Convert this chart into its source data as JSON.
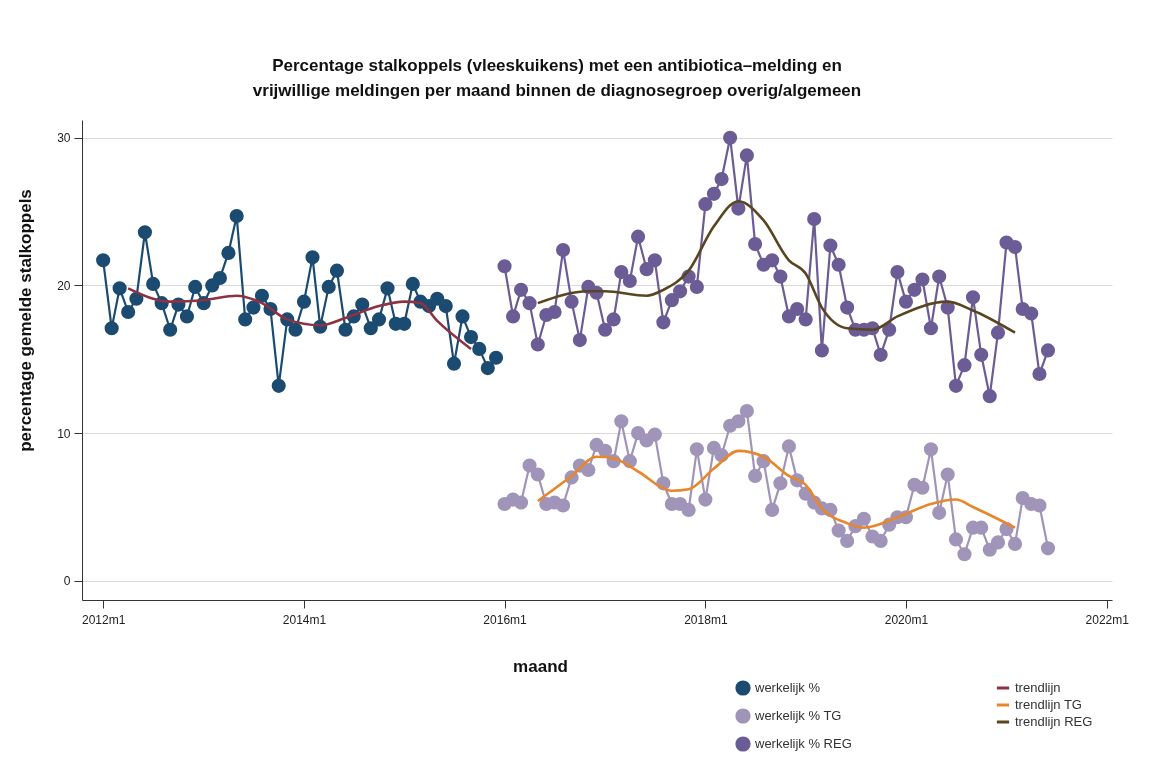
{
  "chart_data": {
    "type": "line",
    "title": "Percentage stalkoppels (vleeskuikens) met een antibiotica–melding en\nvrijwillige meldingen per maand binnen de diagnosegroep overig/algemeen",
    "xlabel": "maand",
    "ylabel": "percentage gemelde stalkoppels",
    "xlim": [
      "2011-10-16",
      "2022-01-20"
    ],
    "xticks": [
      {
        "value": "2012-01",
        "label": "2012m1"
      },
      {
        "value": "2014-01",
        "label": "2014m1"
      },
      {
        "value": "2016-01",
        "label": "2016m1"
      },
      {
        "value": "2018-01",
        "label": "2018m1"
      },
      {
        "value": "2020-01",
        "label": "2020m1"
      },
      {
        "value": "2022-01",
        "label": "2022m1"
      }
    ],
    "ylim": [
      -1.3,
      31.2
    ],
    "yticks": [
      0,
      10,
      20,
      30
    ],
    "grid": "y",
    "legend": "bottom right",
    "marker": "circle",
    "line_style": "solid",
    "series": [
      {
        "name": "werkelijk %",
        "color": "#1b4b70",
        "x": [
          "2012-01",
          "2012-02",
          "2012-03",
          "2012-04",
          "2012-05",
          "2012-06",
          "2012-07",
          "2012-08",
          "2012-09",
          "2012-10",
          "2012-11",
          "2012-12",
          "2013-01",
          "2013-02",
          "2013-03",
          "2013-04",
          "2013-05",
          "2013-06",
          "2013-07",
          "2013-08",
          "2013-09",
          "2013-10",
          "2013-11",
          "2013-12",
          "2014-01",
          "2014-02",
          "2014-03",
          "2014-04",
          "2014-05",
          "2014-06",
          "2014-07",
          "2014-08",
          "2014-09",
          "2014-10",
          "2014-11",
          "2014-12",
          "2015-01",
          "2015-02",
          "2015-03",
          "2015-04",
          "2015-05",
          "2015-06",
          "2015-07",
          "2015-08",
          "2015-09",
          "2015-10",
          "2015-11",
          "2015-12"
        ],
        "values": [
          21.7,
          17.1,
          19.8,
          18.2,
          19.1,
          23.6,
          20.1,
          18.8,
          17.0,
          18.7,
          17.9,
          19.9,
          18.8,
          20.0,
          20.5,
          22.2,
          24.7,
          17.7,
          18.5,
          19.3,
          18.4,
          13.2,
          17.7,
          17.0,
          18.9,
          21.9,
          17.2,
          19.9,
          21.0,
          17.0,
          17.9,
          18.7,
          17.1,
          17.7,
          19.8,
          17.4,
          17.4,
          20.1,
          18.9,
          18.6,
          19.1,
          18.6,
          14.7,
          17.9,
          16.5,
          15.7,
          14.4,
          15.1
        ]
      },
      {
        "name": "werkelijk % TG",
        "color": "#a094b9",
        "x": [
          "2016-01",
          "2016-02",
          "2016-03",
          "2016-04",
          "2016-05",
          "2016-06",
          "2016-07",
          "2016-08",
          "2016-09",
          "2016-10",
          "2016-11",
          "2016-12",
          "2017-01",
          "2017-02",
          "2017-03",
          "2017-04",
          "2017-05",
          "2017-06",
          "2017-07",
          "2017-08",
          "2017-09",
          "2017-10",
          "2017-11",
          "2017-12",
          "2018-01",
          "2018-02",
          "2018-03",
          "2018-04",
          "2018-05",
          "2018-06",
          "2018-07",
          "2018-08",
          "2018-09",
          "2018-10",
          "2018-11",
          "2018-12",
          "2019-01",
          "2019-02",
          "2019-03",
          "2019-04",
          "2019-05",
          "2019-06",
          "2019-07",
          "2019-08",
          "2019-09",
          "2019-10",
          "2019-11",
          "2019-12",
          "2020-01",
          "2020-02",
          "2020-03",
          "2020-04",
          "2020-05",
          "2020-06",
          "2020-07",
          "2020-08",
          "2020-09",
          "2020-10",
          "2020-11",
          "2020-12",
          "2021-01",
          "2021-02",
          "2021-03",
          "2021-04",
          "2021-05",
          "2021-06"
        ],
        "values": [
          5.2,
          5.5,
          5.3,
          7.8,
          7.2,
          5.2,
          5.3,
          5.1,
          7.0,
          7.8,
          7.5,
          9.2,
          8.8,
          8.1,
          10.8,
          8.1,
          10.0,
          9.5,
          9.9,
          6.6,
          5.2,
          5.2,
          4.8,
          8.9,
          5.5,
          9.0,
          8.5,
          10.5,
          10.8,
          11.5,
          7.1,
          8.1,
          4.8,
          6.6,
          9.1,
          6.8,
          5.9,
          5.3,
          4.9,
          4.8,
          3.4,
          2.7,
          3.7,
          4.2,
          3.0,
          2.7,
          3.8,
          4.3,
          4.3,
          6.5,
          6.3,
          8.9,
          4.6,
          7.2,
          2.8,
          1.8,
          3.6,
          3.6,
          2.1,
          2.6,
          3.5,
          2.5,
          5.6,
          5.2,
          5.1,
          2.2
        ]
      },
      {
        "name": "werkelijk % REG",
        "color": "#6c5c95",
        "x": [
          "2016-01",
          "2016-02",
          "2016-03",
          "2016-04",
          "2016-05",
          "2016-06",
          "2016-07",
          "2016-08",
          "2016-09",
          "2016-10",
          "2016-11",
          "2016-12",
          "2017-01",
          "2017-02",
          "2017-03",
          "2017-04",
          "2017-05",
          "2017-06",
          "2017-07",
          "2017-08",
          "2017-09",
          "2017-10",
          "2017-11",
          "2017-12",
          "2018-01",
          "2018-02",
          "2018-03",
          "2018-04",
          "2018-05",
          "2018-06",
          "2018-07",
          "2018-08",
          "2018-09",
          "2018-10",
          "2018-11",
          "2018-12",
          "2019-01",
          "2019-02",
          "2019-03",
          "2019-04",
          "2019-05",
          "2019-06",
          "2019-07",
          "2019-08",
          "2019-09",
          "2019-10",
          "2019-11",
          "2019-12",
          "2020-01",
          "2020-02",
          "2020-03",
          "2020-04",
          "2020-05",
          "2020-06",
          "2020-07",
          "2020-08",
          "2020-09",
          "2020-10",
          "2020-11",
          "2020-12",
          "2021-01",
          "2021-02",
          "2021-03",
          "2021-04",
          "2021-05",
          "2021-06"
        ],
        "values": [
          21.3,
          17.9,
          19.7,
          18.8,
          16.0,
          18.0,
          18.2,
          22.4,
          18.9,
          16.3,
          19.9,
          19.5,
          17.0,
          17.7,
          20.9,
          20.3,
          23.3,
          21.1,
          21.7,
          17.5,
          19.0,
          19.6,
          20.6,
          19.9,
          25.5,
          26.2,
          27.2,
          30.0,
          25.2,
          28.8,
          22.8,
          21.4,
          21.7,
          20.6,
          17.9,
          18.4,
          17.7,
          24.5,
          15.6,
          22.7,
          21.4,
          18.5,
          17.0,
          17.0,
          17.1,
          15.3,
          17.0,
          20.9,
          18.9,
          19.7,
          20.4,
          17.1,
          20.6,
          18.5,
          13.2,
          14.6,
          19.2,
          15.3,
          12.5,
          16.8,
          22.9,
          22.6,
          18.4,
          18.1,
          14.0,
          15.6
        ]
      },
      {
        "name": "trendlijn",
        "color": "#8c3242",
        "marker": "none",
        "x": [
          "2012-04",
          "2012-09",
          "2013-01",
          "2013-05",
          "2013-08",
          "2013-11",
          "2014-03",
          "2014-06",
          "2014-10",
          "2015-01",
          "2015-03",
          "2015-05",
          "2015-09"
        ],
        "values": [
          19.8,
          18.9,
          19.0,
          19.3,
          18.8,
          17.7,
          17.3,
          17.8,
          18.6,
          18.9,
          18.8,
          17.6,
          15.7
        ]
      },
      {
        "name": "trendlijn TG",
        "color": "#e8862b",
        "marker": "none",
        "x": [
          "2016-05",
          "2016-09",
          "2016-12",
          "2017-02",
          "2017-05",
          "2017-09",
          "2017-11",
          "2018-02",
          "2018-05",
          "2018-08",
          "2018-11",
          "2019-01",
          "2019-03",
          "2019-06",
          "2019-08",
          "2019-12",
          "2020-04",
          "2020-07",
          "2020-09",
          "2021-02"
        ],
        "values": [
          5.4,
          7.1,
          8.4,
          8.3,
          7.4,
          6.1,
          6.2,
          7.6,
          8.8,
          8.4,
          7.1,
          6.5,
          4.9,
          3.9,
          3.6,
          4.3,
          5.2,
          5.5,
          5.0,
          3.6
        ]
      },
      {
        "name": "trendlijn REG",
        "color": "#5a4521",
        "marker": "none",
        "x": [
          "2016-05",
          "2016-11",
          "2017-01",
          "2017-06",
          "2017-08",
          "2017-11",
          "2018-02",
          "2018-05",
          "2018-08",
          "2018-11",
          "2019-01",
          "2019-03",
          "2019-06",
          "2019-09",
          "2019-12",
          "2020-06",
          "2020-09",
          "2021-02"
        ],
        "values": [
          18.8,
          19.6,
          19.6,
          19.3,
          19.7,
          21.0,
          24.0,
          25.7,
          24.4,
          21.7,
          20.8,
          18.5,
          17.1,
          17.0,
          17.9,
          18.9,
          18.3,
          16.8
        ]
      }
    ]
  }
}
